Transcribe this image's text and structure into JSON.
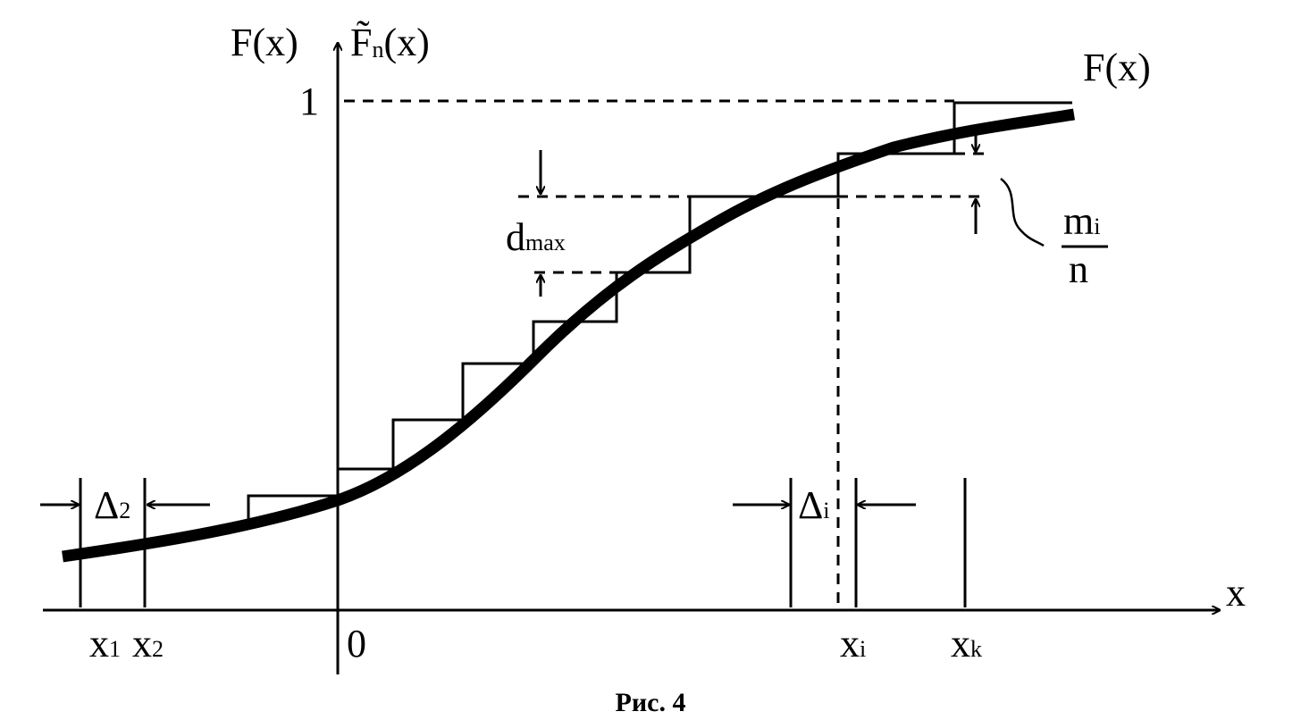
{
  "figure": {
    "y_label_left": "F(x)",
    "y_label_right": {
      "base": "F̃",
      "sub": "n",
      "tail": "(x)"
    },
    "one": "1",
    "curve_label": "F(x)",
    "d_max": {
      "base": "d",
      "sub": "max"
    },
    "fraction": {
      "num_base": "m",
      "num_sub": "i",
      "den": "n"
    },
    "delta_2": {
      "base": "Δ",
      "sub": "2"
    },
    "delta_i": {
      "base": "Δ",
      "sub": "i"
    },
    "x_labels": [
      {
        "base": "x",
        "sub": "1"
      },
      {
        "base": "x",
        "sub": "2"
      },
      {
        "base": "0",
        "sub": ""
      },
      {
        "base": "x",
        "sub": "i"
      },
      {
        "base": "x",
        "sub": "k"
      }
    ],
    "x_axis_label": "x",
    "caption": "Рис. 4"
  }
}
